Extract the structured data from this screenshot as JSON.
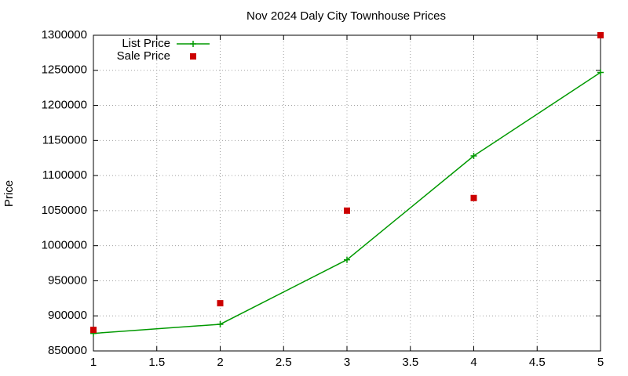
{
  "chart_data": {
    "type": "line",
    "title": "Nov 2024 Daly City Townhouse Prices",
    "y_label": "Price",
    "x": [
      1,
      2,
      3,
      4,
      5
    ],
    "series": [
      {
        "name": "List Price",
        "color": "#009900",
        "style": "linespoints",
        "values": [
          875000,
          888000,
          980000,
          1128000,
          1247000
        ]
      },
      {
        "name": "Sale Price",
        "color": "#cc0000",
        "style": "points",
        "values": [
          880000,
          918000,
          1050000,
          1068000,
          1300000
        ]
      }
    ],
    "xlim": [
      1,
      5
    ],
    "xticks": [
      1,
      1.5,
      2,
      2.5,
      3,
      3.5,
      4,
      4.5,
      5
    ],
    "ylim": [
      850000,
      1300000
    ],
    "yticks": [
      850000,
      900000,
      950000,
      1000000,
      1050000,
      1100000,
      1150000,
      1200000,
      1250000,
      1300000
    ],
    "grid": true,
    "legend": "top-left"
  }
}
